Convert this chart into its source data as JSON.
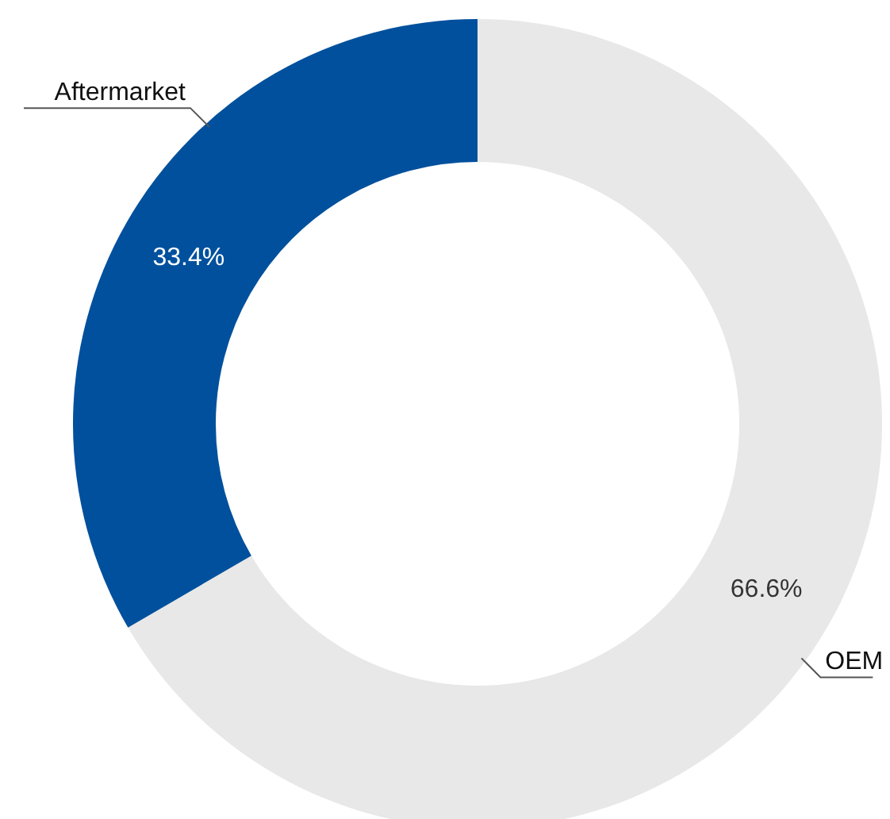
{
  "chart_data": {
    "type": "donut",
    "categories": [
      "OEM",
      "Aftermarket"
    ],
    "values": [
      66.6,
      33.4
    ],
    "value_labels": [
      "66.6%",
      "33.4%"
    ],
    "colors": [
      "#e8e8e8",
      "#00509d"
    ],
    "legend": false
  }
}
